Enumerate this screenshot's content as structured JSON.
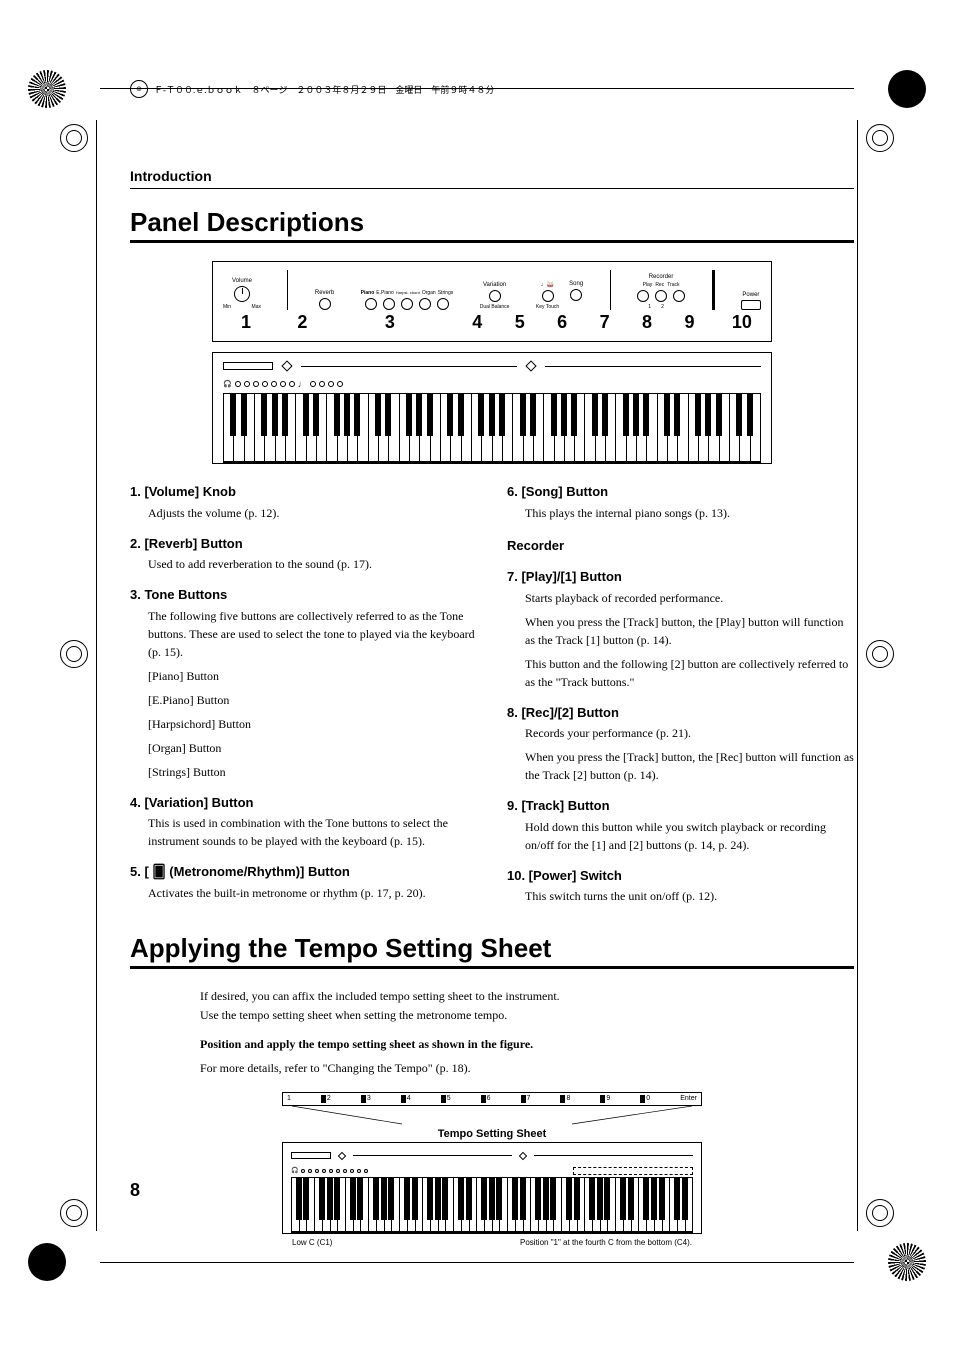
{
  "meta": {
    "header": "Ｆ-Ｔ００.ｅ.ｂｏｏｋ　８ページ　２００３年８月２９日　金曜日　午前９時４８分"
  },
  "section_label": "Introduction",
  "heading_panel": "Panel Descriptions",
  "heading_tempo": "Applying the Tempo Setting Sheet",
  "panel": {
    "labels": {
      "volume": "Volume",
      "min": "Min",
      "max": "Max",
      "reverb": "Reverb",
      "piano": "Piano",
      "epiano": "E.Piano",
      "harpsichord": "Harpsi-\nchord",
      "organ": "Organ",
      "strings": "Strings",
      "variation": "Variation",
      "song": "Song",
      "dual_balance": "Dual Balance",
      "key_touch": "Key Touch",
      "recorder": "Recorder",
      "play": "Play",
      "rec": "Rec",
      "track": "Track",
      "power": "Power"
    },
    "numbers": [
      "1",
      "2",
      "3",
      "4",
      "5",
      "6",
      "7",
      "8",
      "9",
      "10"
    ]
  },
  "left_col": [
    {
      "h": "1. [Volume] Knob",
      "b": [
        "Adjusts the volume (p. 12)."
      ]
    },
    {
      "h": "2. [Reverb] Button",
      "b": [
        "Used to add reverberation to the sound (p. 17)."
      ]
    },
    {
      "h": "3. Tone Buttons",
      "b": [
        "The following five buttons are collectively referred to as the Tone buttons. These are used to select the tone to played via the keyboard (p. 15).",
        "[Piano] Button",
        "[E.Piano] Button",
        "[Harpsichord] Button",
        "[Organ] Button",
        "[Strings] Button"
      ]
    },
    {
      "h": "4. [Variation] Button",
      "b": [
        "This is used in combination with the Tone buttons to select the instrument sounds to be played with the keyboard (p. 15)."
      ]
    },
    {
      "h": "5. [ 🂠 (Metronome/Rhythm)] Button",
      "b": [
        "Activates the built-in metronome or rhythm (p. 17, p. 20)."
      ]
    }
  ],
  "right_col": [
    {
      "h": "6. [Song] Button",
      "b": [
        "This plays the internal piano songs (p. 13)."
      ]
    },
    {
      "sub": "Recorder"
    },
    {
      "h": "7. [Play]/[1] Button",
      "b": [
        "Starts playback of recorded performance.",
        "When you press the [Track] button, the [Play] button will function as the Track [1] button (p. 14).",
        "This button and the following [2] button are collectively referred to as the \"Track buttons.\""
      ]
    },
    {
      "h": "8. [Rec]/[2] Button",
      "b": [
        "Records your performance (p. 21).",
        "When you press the [Track] button, the [Rec] button will function as the Track [2] button (p. 14)."
      ]
    },
    {
      "h": "9. [Track] Button",
      "b": [
        "Hold down this button while you switch playback or recording on/off for the [1] and [2] buttons (p. 14, p. 24)."
      ]
    },
    {
      "h": "10. [Power] Switch",
      "b": [
        "This switch turns the unit on/off (p. 12)."
      ]
    }
  ],
  "tempo": {
    "intro1": "If desired, you can affix the included tempo setting sheet to the instrument.",
    "intro2": "Use the tempo setting sheet when setting the metronome tempo.",
    "bold": "Position and apply the tempo setting sheet as shown in the figure.",
    "detail": "For more details, refer to \"Changing the Tempo\" (p. 18).",
    "strip": [
      "1",
      "2",
      "3",
      "4",
      "5",
      "6",
      "7",
      "8",
      "9",
      "0",
      "Enter"
    ],
    "banner": "Tempo Setting Sheet",
    "foot_left": "Low C (C1)",
    "foot_right": "Position \"1\" at the fourth C from the bottom (C4)."
  },
  "page_number": "8"
}
